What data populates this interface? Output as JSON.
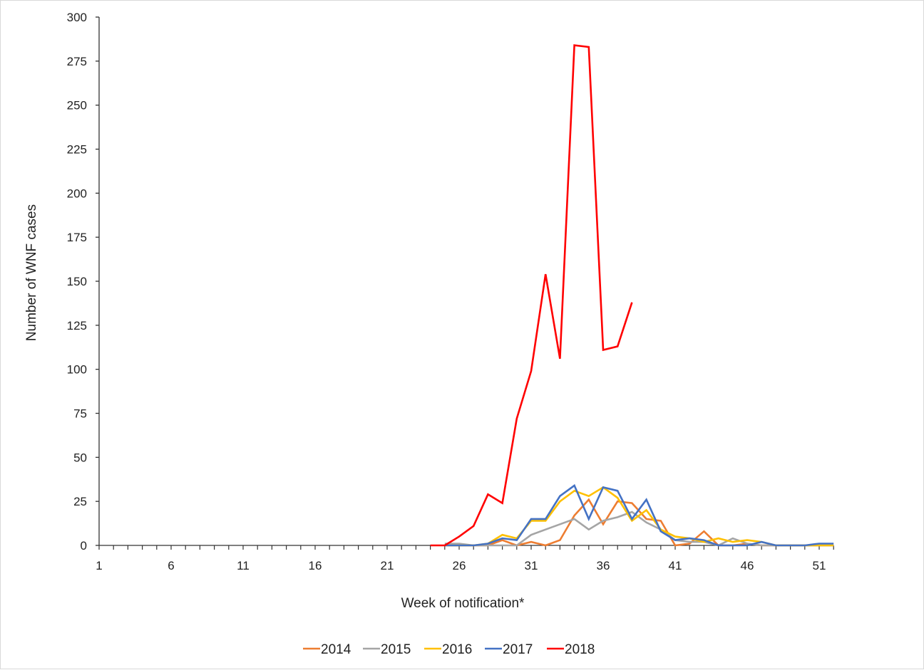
{
  "chart_data": {
    "type": "line",
    "title": "",
    "xlabel": "Week of notification*",
    "ylabel": "Number of WNF cases",
    "ylim": [
      0,
      300
    ],
    "yticks": [
      0,
      25,
      50,
      75,
      100,
      125,
      150,
      175,
      200,
      225,
      250,
      275,
      300
    ],
    "xlim": [
      1,
      52
    ],
    "xtick_labels": [
      1,
      6,
      11,
      16,
      21,
      26,
      31,
      36,
      41,
      46,
      51
    ],
    "grid": false,
    "legend_position": "bottom",
    "x": [
      1,
      2,
      3,
      4,
      5,
      6,
      7,
      8,
      9,
      10,
      11,
      12,
      13,
      14,
      15,
      16,
      17,
      18,
      19,
      20,
      21,
      22,
      23,
      24,
      25,
      26,
      27,
      28,
      29,
      30,
      31,
      32,
      33,
      34,
      35,
      36,
      37,
      38,
      39,
      40,
      41,
      42,
      43,
      44,
      45,
      46,
      47,
      48,
      49,
      50,
      51,
      52
    ],
    "series": [
      {
        "name": "2014",
        "color": "#ED7D31",
        "start_week": 25,
        "values": [
          0,
          0,
          0,
          0,
          3,
          0,
          2,
          0,
          3,
          17,
          26,
          12,
          25,
          24,
          15,
          14,
          0,
          1,
          8,
          0,
          0,
          1,
          0,
          0,
          0,
          0,
          0,
          0
        ]
      },
      {
        "name": "2015",
        "color": "#A5A5A5",
        "start_week": 25,
        "values": [
          1,
          1,
          0,
          0,
          0,
          0,
          6,
          9,
          12,
          15,
          9,
          14,
          16,
          19,
          13,
          9,
          3,
          2,
          2,
          0,
          4,
          1,
          0,
          0,
          0,
          0,
          0,
          0
        ]
      },
      {
        "name": "2016",
        "color": "#FFC000",
        "start_week": 25,
        "values": [
          0,
          0,
          0,
          1,
          6,
          4,
          14,
          14,
          25,
          31,
          28,
          33,
          27,
          14,
          20,
          9,
          5,
          4,
          2,
          4,
          2,
          3,
          2,
          0,
          0,
          0,
          0,
          0
        ]
      },
      {
        "name": "2017",
        "color": "#4472C4",
        "start_week": 25,
        "values": [
          0,
          0,
          0,
          1,
          4,
          3,
          15,
          15,
          28,
          34,
          15,
          33,
          31,
          15,
          26,
          8,
          3,
          4,
          3,
          0,
          0,
          0,
          2,
          0,
          0,
          0,
          1,
          1
        ]
      },
      {
        "name": "2018",
        "color": "#FF0000",
        "start_week": 24,
        "values": [
          0,
          0,
          5,
          11,
          29,
          24,
          72,
          99,
          154,
          106,
          284,
          283,
          111,
          113,
          138
        ]
      }
    ]
  }
}
